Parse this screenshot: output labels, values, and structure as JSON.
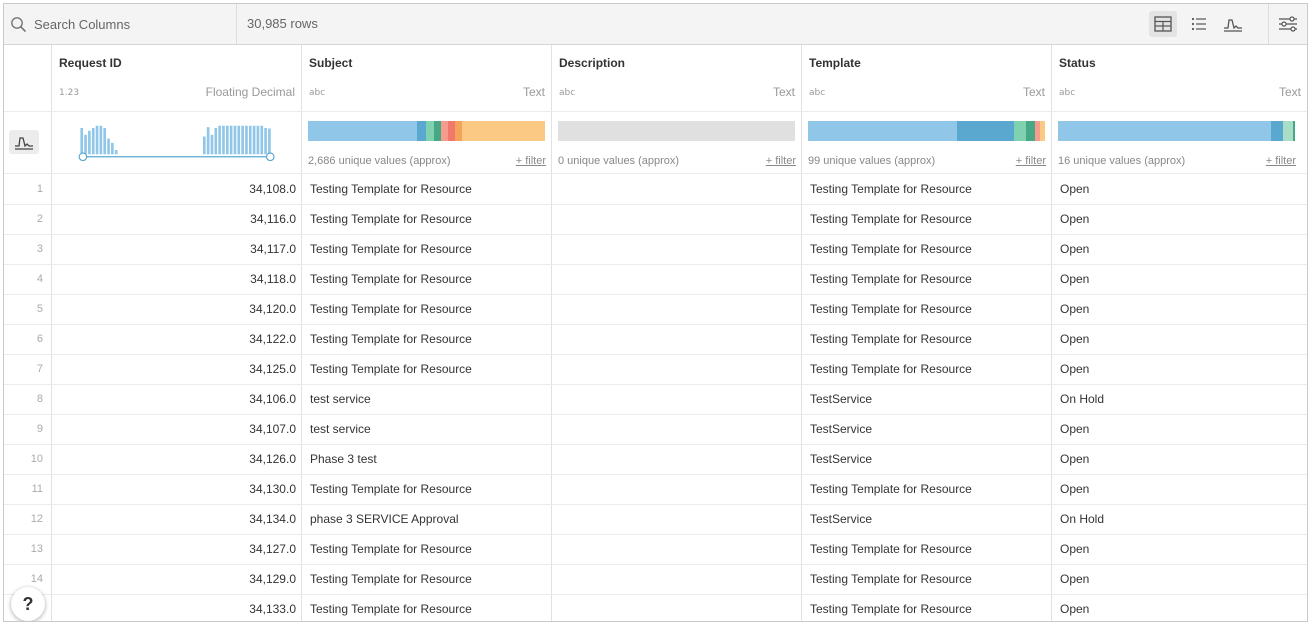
{
  "toolbar": {
    "search_placeholder": "Search Columns",
    "row_count": "30,985 rows",
    "icons": [
      "search-icon",
      "table-view-icon",
      "list-view-icon",
      "histogram-icon",
      "settings-sliders-icon"
    ]
  },
  "columns": [
    {
      "name": "Request ID",
      "type_glyph": "1.23",
      "type_label": "Floating Decimal",
      "histogram_values": [
        0.92,
        0.68,
        0.82,
        0.92,
        1.0,
        1.0,
        0.92,
        0.55,
        0.4,
        0.15,
        0,
        0,
        0,
        0,
        0,
        0,
        0,
        0,
        0,
        0,
        0,
        0,
        0,
        0,
        0,
        0,
        0,
        0,
        0,
        0,
        0,
        0,
        0.62,
        0.95,
        0.68,
        0.92,
        1.0,
        1.0,
        1.0,
        1.0,
        1.0,
        1.0,
        1.0,
        1.0,
        1.0,
        1.0,
        1.0,
        1.0,
        0.92,
        0.9
      ]
    },
    {
      "name": "Subject",
      "type_glyph": "abc",
      "type_label": "Text",
      "unique": "2,686 unique values (approx)",
      "filter": "+ filter",
      "dist": [
        {
          "color": "#90c7e8",
          "frac": 0.46
        },
        {
          "color": "#5aa7cf",
          "frac": 0.04
        },
        {
          "color": "#7fd1b0",
          "frac": 0.03
        },
        {
          "color": "#46a884",
          "frac": 0.03
        },
        {
          "color": "#f59c8f",
          "frac": 0.03
        },
        {
          "color": "#ef7a6c",
          "frac": 0.03
        },
        {
          "color": "#f5a25a",
          "frac": 0.03
        },
        {
          "color": "#fbc983",
          "frac": 0.35
        }
      ]
    },
    {
      "name": "Description",
      "type_glyph": "abc",
      "type_label": "Text",
      "unique": "0 unique values (approx)",
      "filter": "+ filter",
      "dist": [
        {
          "color": "#e0e0e0",
          "frac": 1.0
        }
      ]
    },
    {
      "name": "Template",
      "type_glyph": "abc",
      "type_label": "Text",
      "unique": "99 unique values (approx)",
      "filter": "+ filter",
      "dist": [
        {
          "color": "#90c7e8",
          "frac": 0.63
        },
        {
          "color": "#5aa7cf",
          "frac": 0.24
        },
        {
          "color": "#7fd1b0",
          "frac": 0.05
        },
        {
          "color": "#46a884",
          "frac": 0.04
        },
        {
          "color": "#f59c8f",
          "frac": 0.02
        },
        {
          "color": "#fbc983",
          "frac": 0.02
        }
      ]
    },
    {
      "name": "Status",
      "type_glyph": "abc",
      "type_label": "Text",
      "unique": "16 unique values (approx)",
      "filter": "+ filter",
      "dist": [
        {
          "color": "#90c7e8",
          "frac": 0.9
        },
        {
          "color": "#5aa7cf",
          "frac": 0.05
        },
        {
          "color": "#a8ddc6",
          "frac": 0.04
        },
        {
          "color": "#46a884",
          "frac": 0.01
        }
      ]
    }
  ],
  "rows": [
    {
      "idx": "1",
      "id": "34,108.0",
      "subject": "Testing Template for Resource",
      "description": "",
      "template": "Testing Template for Resource",
      "status": "Open"
    },
    {
      "idx": "2",
      "id": "34,116.0",
      "subject": "Testing Template for Resource",
      "description": "",
      "template": "Testing Template for Resource",
      "status": "Open"
    },
    {
      "idx": "3",
      "id": "34,117.0",
      "subject": "Testing Template for Resource",
      "description": "",
      "template": "Testing Template for Resource",
      "status": "Open"
    },
    {
      "idx": "4",
      "id": "34,118.0",
      "subject": "Testing Template for Resource",
      "description": "",
      "template": "Testing Template for Resource",
      "status": "Open"
    },
    {
      "idx": "5",
      "id": "34,120.0",
      "subject": "Testing Template for Resource",
      "description": "",
      "template": "Testing Template for Resource",
      "status": "Open"
    },
    {
      "idx": "6",
      "id": "34,122.0",
      "subject": "Testing Template for Resource",
      "description": "",
      "template": "Testing Template for Resource",
      "status": "Open"
    },
    {
      "idx": "7",
      "id": "34,125.0",
      "subject": "Testing Template for Resource",
      "description": "",
      "template": "Testing Template for Resource",
      "status": "Open"
    },
    {
      "idx": "8",
      "id": "34,106.0",
      "subject": "test service",
      "description": "",
      "template": "TestService",
      "status": "On Hold"
    },
    {
      "idx": "9",
      "id": "34,107.0",
      "subject": "test service",
      "description": "",
      "template": "TestService",
      "status": "Open"
    },
    {
      "idx": "10",
      "id": "34,126.0",
      "subject": "Phase 3 test",
      "description": "",
      "template": "TestService",
      "status": "Open"
    },
    {
      "idx": "11",
      "id": "34,130.0",
      "subject": "Testing Template for Resource",
      "description": "",
      "template": "Testing Template for Resource",
      "status": "Open"
    },
    {
      "idx": "12",
      "id": "34,134.0",
      "subject": "phase 3 SERVICE Approval",
      "description": "",
      "template": "TestService",
      "status": "On Hold"
    },
    {
      "idx": "13",
      "id": "34,127.0",
      "subject": "Testing Template for Resource",
      "description": "",
      "template": "Testing Template for Resource",
      "status": "Open"
    },
    {
      "idx": "14",
      "id": "34,129.0",
      "subject": "Testing Template for Resource",
      "description": "",
      "template": "Testing Template for Resource",
      "status": "Open"
    },
    {
      "idx": "15",
      "id": "34,133.0",
      "subject": "Testing Template for Resource",
      "description": "",
      "template": "Testing Template for Resource",
      "status": "Open"
    }
  ],
  "help": {
    "label": "?"
  },
  "colors": {
    "accent": "#90c7e8",
    "histogram_bar": "#90c7e8",
    "range_handle": "#5aa7cf"
  }
}
